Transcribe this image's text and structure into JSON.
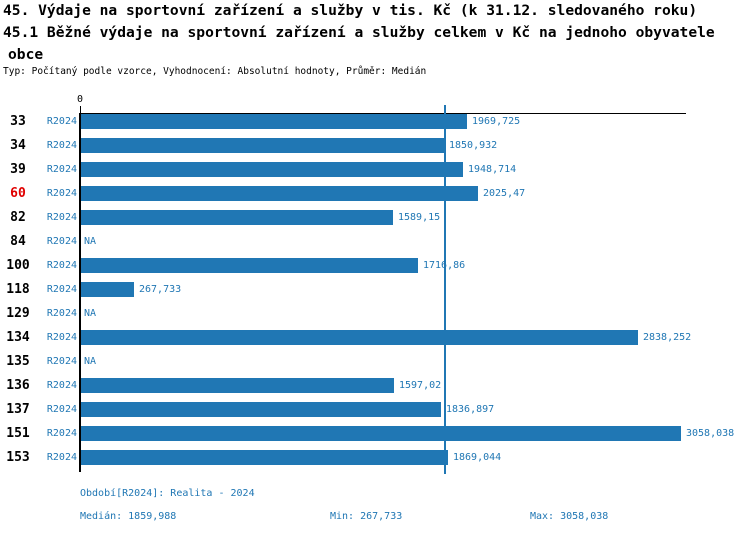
{
  "title": {
    "line1": "45. Výdaje na sportovní zařízení a služby v tis. Kč (k 31.12. sledovaného roku)",
    "line2": "45.1 Běžné výdaje na sportovní zařízení a služby celkem v Kč na jednoho obyvatele",
    "line3": "obce",
    "meta": "Typ: Počítaný podle vzorce, Vyhodnocení: Absolutní hodnoty, Průměr: Medián"
  },
  "colors": {
    "bar": "#2077b4",
    "label_blue": "#2077b4",
    "median_line": "#2077b4",
    "highlight_red": "#e00000",
    "axis_black": "#000000"
  },
  "chart_data": {
    "type": "bar",
    "orientation": "horizontal",
    "title": "45.1 Běžné výdaje na sportovní zařízení a služby celkem v Kč na jednoho obyvatele obce",
    "xlabel": "",
    "ylabel": "",
    "axis_zero_label": "0",
    "xlim": [
      0,
      3058.038
    ],
    "na_text": "NA",
    "period": "R2024",
    "median_value": 1859.988,
    "categories": [
      "33",
      "34",
      "39",
      "60",
      "82",
      "84",
      "100",
      "118",
      "129",
      "134",
      "135",
      "136",
      "137",
      "151",
      "153"
    ],
    "rows": [
      {
        "id": "33",
        "period": "R2024",
        "value": 1969.725,
        "value_label": "1969,725",
        "highlight": false
      },
      {
        "id": "34",
        "period": "R2024",
        "value": 1850.932,
        "value_label": "1850,932",
        "highlight": false
      },
      {
        "id": "39",
        "period": "R2024",
        "value": 1948.714,
        "value_label": "1948,714",
        "highlight": false
      },
      {
        "id": "60",
        "period": "R2024",
        "value": 2025.47,
        "value_label": "2025,47",
        "highlight": true
      },
      {
        "id": "82",
        "period": "R2024",
        "value": 1589.15,
        "value_label": "1589,15",
        "highlight": false
      },
      {
        "id": "84",
        "period": "R2024",
        "value": null,
        "value_label": "NA",
        "highlight": false
      },
      {
        "id": "100",
        "period": "R2024",
        "value": 1716.86,
        "value_label": "1716,86",
        "highlight": false
      },
      {
        "id": "118",
        "period": "R2024",
        "value": 267.733,
        "value_label": "267,733",
        "highlight": false
      },
      {
        "id": "129",
        "period": "R2024",
        "value": null,
        "value_label": "NA",
        "highlight": false
      },
      {
        "id": "134",
        "period": "R2024",
        "value": 2838.252,
        "value_label": "2838,252",
        "highlight": false
      },
      {
        "id": "135",
        "period": "R2024",
        "value": null,
        "value_label": "NA",
        "highlight": false
      },
      {
        "id": "136",
        "period": "R2024",
        "value": 1597.02,
        "value_label": "1597,02",
        "highlight": false
      },
      {
        "id": "137",
        "period": "R2024",
        "value": 1836.897,
        "value_label": "1836,897",
        "highlight": false
      },
      {
        "id": "151",
        "period": "R2024",
        "value": 3058.038,
        "value_label": "3058,038",
        "highlight": false
      },
      {
        "id": "153",
        "period": "R2024",
        "value": 1869.044,
        "value_label": "1869,044",
        "highlight": false
      }
    ]
  },
  "footer": {
    "period_line": "Období[R2024]: Realita - 2024",
    "median": "Medián: 1859,988",
    "min": "Min: 267,733",
    "max": "Max: 3058,038"
  }
}
